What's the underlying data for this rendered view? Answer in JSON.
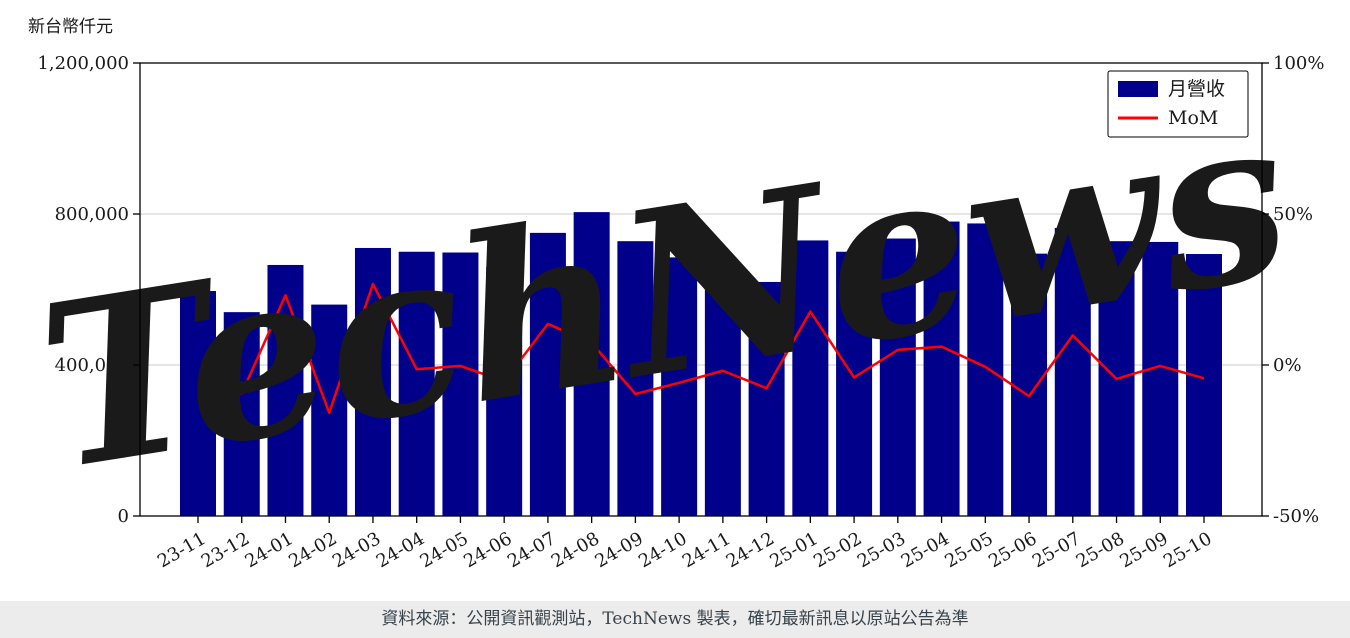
{
  "watermark": "TechNews",
  "footer": {
    "text": "資料來源：公開資訊觀測站，TechNews 製表，確切最新訊息以原站公告為準"
  },
  "colors": {
    "bar": "#00008B",
    "line": "#FF0000",
    "grid": "#cccccc",
    "watermark": "rgba(205,45,45,0.12)"
  },
  "chart_data": {
    "type": "bar+line",
    "title": "",
    "legend_position": "top-right",
    "grid": true,
    "categories": [
      "23-11",
      "23-12",
      "24-01",
      "24-02",
      "24-03",
      "24-04",
      "24-05",
      "24-06",
      "24-07",
      "24-08",
      "24-09",
      "24-10",
      "24-11",
      "24-12",
      "25-01",
      "25-02",
      "25-03",
      "25-04",
      "25-05",
      "25-06",
      "25-07",
      "25-08",
      "25-09",
      "25-10"
    ],
    "series": [
      {
        "name": "月營收",
        "type": "bar",
        "axis": "left",
        "color": "#00008B",
        "values": [
          596000,
          540000,
          665000,
          560000,
          710000,
          700000,
          698000,
          660000,
          750000,
          805000,
          728000,
          685000,
          672000,
          620000,
          730000,
          700000,
          735000,
          780000,
          775000,
          695000,
          763000,
          728000,
          726000,
          694000
        ]
      },
      {
        "name": "MoM",
        "type": "line",
        "axis": "right",
        "color": "#FF0000",
        "values": [
          -11.0,
          -9.4,
          23.1,
          -15.8,
          26.8,
          -1.4,
          -0.3,
          -5.4,
          13.6,
          7.3,
          -9.6,
          -5.9,
          -1.9,
          -7.7,
          17.7,
          -4.1,
          5.0,
          6.1,
          -0.6,
          -10.3,
          9.8,
          -4.6,
          -0.3,
          -4.4
        ]
      }
    ],
    "left_axis": {
      "label": "新台幣仟元",
      "range": [
        0,
        1200000
      ],
      "ticks": [
        {
          "value": 0,
          "label": "0"
        },
        {
          "value": 400000,
          "label": "400,000"
        },
        {
          "value": 800000,
          "label": "800,000"
        },
        {
          "value": 1200000,
          "label": "1,200,000"
        }
      ],
      "grid_values": [
        400000,
        800000
      ]
    },
    "right_axis": {
      "range": [
        -50,
        100
      ],
      "ticks": [
        {
          "value": -50,
          "label": "-50%"
        },
        {
          "value": 0,
          "label": "0%"
        },
        {
          "value": 50,
          "label": "50%"
        },
        {
          "value": 100,
          "label": "100%"
        }
      ]
    }
  }
}
